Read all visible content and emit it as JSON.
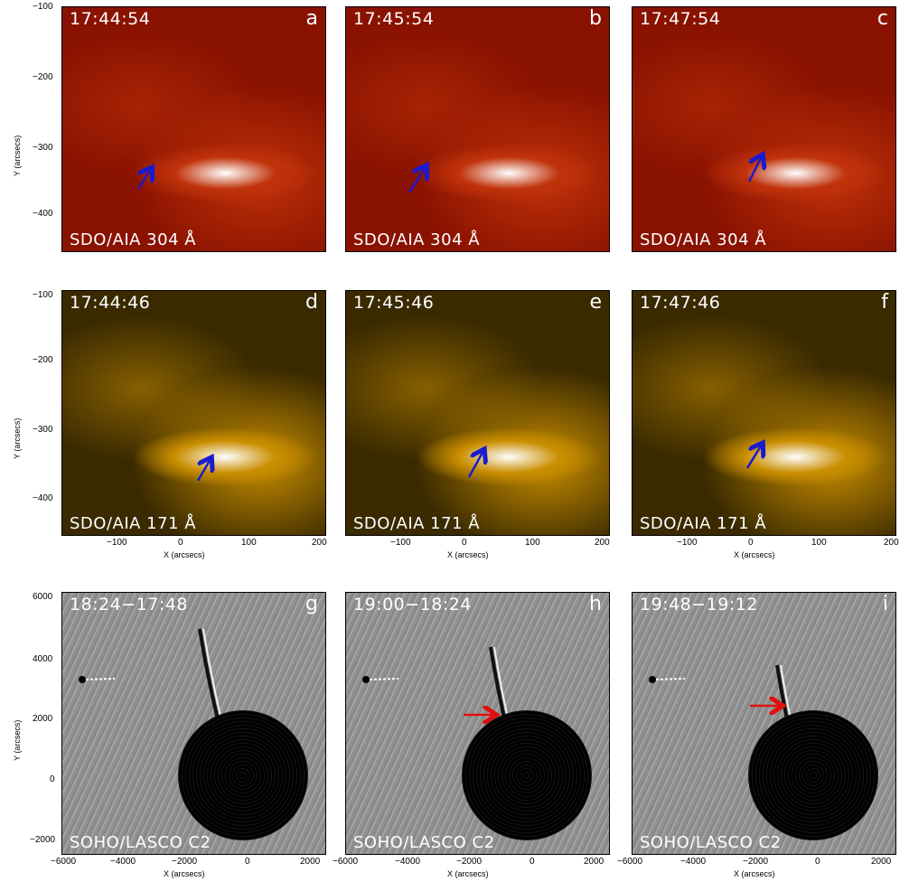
{
  "panels": [
    {
      "id": "a",
      "letter": "a",
      "time": "17:44:54",
      "instrument": "SDO/AIA 304 Å",
      "colors": {
        "bg": "#8a1200",
        "mid": "#c0320a",
        "hot": "#ffffff"
      }
    },
    {
      "id": "b",
      "letter": "b",
      "time": "17:45:54",
      "instrument": "SDO/AIA 304 Å",
      "colors": {
        "bg": "#8a1200",
        "mid": "#c0320a",
        "hot": "#ffffff"
      }
    },
    {
      "id": "c",
      "letter": "c",
      "time": "17:47:54",
      "instrument": "SDO/AIA 304 Å",
      "colors": {
        "bg": "#8a1200",
        "mid": "#c0320a",
        "hot": "#ffffff"
      }
    },
    {
      "id": "d",
      "letter": "d",
      "time": "17:44:46",
      "instrument": "SDO/AIA 171 Å",
      "colors": {
        "bg": "#3a2a00",
        "mid": "#c98e00",
        "hot": "#ffffff"
      }
    },
    {
      "id": "e",
      "letter": "e",
      "time": "17:45:46",
      "instrument": "SDO/AIA 171 Å",
      "colors": {
        "bg": "#3a2a00",
        "mid": "#c98e00",
        "hot": "#ffffff"
      }
    },
    {
      "id": "f",
      "letter": "f",
      "time": "17:47:46",
      "instrument": "SDO/AIA 171 Å",
      "colors": {
        "bg": "#3a2a00",
        "mid": "#c98e00",
        "hot": "#ffffff"
      }
    },
    {
      "id": "g",
      "letter": "g",
      "time": "18:24−17:48",
      "instrument": "SOHO/LASCO C2",
      "colors": {
        "bg": "#8c8c8c"
      }
    },
    {
      "id": "h",
      "letter": "h",
      "time": "19:00−18:24",
      "instrument": "SOHO/LASCO C2",
      "colors": {
        "bg": "#8c8c8c"
      }
    },
    {
      "id": "i",
      "letter": "i",
      "time": "19:48−19:12",
      "instrument": "SOHO/LASCO C2",
      "colors": {
        "bg": "#8c8c8c"
      }
    }
  ],
  "axes": {
    "aia_y_ticks": [
      "−100",
      "−200",
      "−300",
      "−400"
    ],
    "aia_x_ticks": [
      "−100",
      "0",
      "100",
      "200"
    ],
    "lasco_y_ticks": [
      "6000",
      "4000",
      "2000",
      "0",
      "−2000"
    ],
    "lasco_x_ticks": [
      "−6000",
      "−4000",
      "−2000",
      "0",
      "2000"
    ],
    "ylabel": "Y (arcsecs)",
    "xlabel": "X (arcsecs)"
  },
  "arrow_colors": {
    "aia": "#1a1ad0",
    "lasco": "#e01010"
  }
}
